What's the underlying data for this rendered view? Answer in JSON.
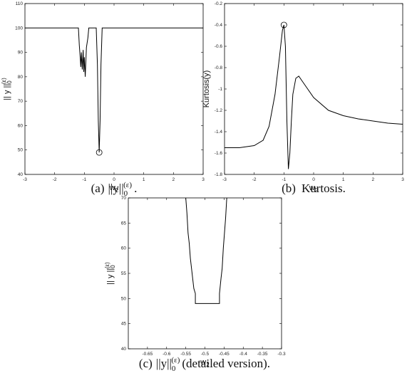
{
  "chart_data": [
    {
      "type": "line",
      "xlabel": {
        "base": "w",
        "sub": "2"
      },
      "ylabel": {
        "base": "|| y ||",
        "sub": "0",
        "sup": "(ε)"
      },
      "caption": {
        "label": "(a)",
        "math": {
          "base": "||y||",
          "sub": "0",
          "sup": "(ε)"
        },
        "suffix": "."
      },
      "xlim": [
        -3,
        3
      ],
      "xticks": [
        -3,
        -2,
        -1,
        0,
        1,
        2,
        3
      ],
      "ylim": [
        40,
        110
      ],
      "yticks": [
        40,
        50,
        60,
        70,
        80,
        90,
        100,
        110
      ],
      "x": [
        -3,
        -1.2,
        -1.17,
        -1.14,
        -1.12,
        -1.1,
        -1.07,
        -1.04,
        -1.02,
        -1.0,
        -0.97,
        -0.93,
        -0.88,
        -0.85,
        -0.6,
        -0.56,
        -0.53,
        -0.5,
        -0.47,
        -0.44,
        -0.4,
        3
      ],
      "series": [
        {
          "color": "#000000",
          "values": [
            100,
            100,
            93,
            88,
            84,
            90,
            83,
            91,
            82,
            88,
            80,
            92,
            96,
            100,
            100,
            85,
            62,
            49,
            62,
            85,
            100,
            100
          ]
        }
      ],
      "highlight": {
        "x": -0.5,
        "y": 49
      }
    },
    {
      "type": "line",
      "xlabel": {
        "base": "w",
        "sub": "2"
      },
      "ylabel": {
        "base": "Kurtosis(y)"
      },
      "caption": {
        "label": "(b)",
        "suffix": "Kurtosis."
      },
      "xlim": [
        -3,
        3
      ],
      "xticks": [
        -3,
        -2,
        -1,
        0,
        1,
        2,
        3
      ],
      "ylim": [
        -1.8,
        -0.2
      ],
      "yticks": [
        -1.8,
        -1.6,
        -1.4,
        -1.2,
        -1,
        -0.8,
        -0.6,
        -0.4,
        -0.2
      ],
      "x": [
        -3,
        -2.5,
        -2,
        -1.7,
        -1.5,
        -1.3,
        -1.15,
        -1.05,
        -1,
        -0.95,
        -0.9,
        -0.85,
        -0.8,
        -0.75,
        -0.7,
        -0.6,
        -0.5,
        -0.4,
        -0.2,
        0,
        0.5,
        1,
        1.5,
        2,
        2.5,
        3
      ],
      "series": [
        {
          "color": "#000000",
          "values": [
            -1.55,
            -1.55,
            -1.53,
            -1.48,
            -1.35,
            -1.05,
            -0.7,
            -0.45,
            -0.4,
            -0.6,
            -1.3,
            -1.75,
            -1.6,
            -1.3,
            -1.05,
            -0.9,
            -0.88,
            -0.92,
            -1.0,
            -1.08,
            -1.2,
            -1.25,
            -1.28,
            -1.3,
            -1.32,
            -1.33
          ]
        }
      ],
      "highlight": {
        "x": -1,
        "y": -0.4
      }
    },
    {
      "type": "line",
      "xlabel": {
        "base": "w",
        "sub": "2"
      },
      "ylabel": {
        "base": "|| y ||",
        "sub": "0",
        "sup": "(ε)"
      },
      "caption": {
        "label": "(c)",
        "math": {
          "base": "||y||",
          "sub": "0",
          "sup": "(ε)"
        },
        "suffix": "(detailed version)."
      },
      "xlim": [
        -0.7,
        -0.3
      ],
      "xticks": [
        -0.65,
        -0.6,
        -0.55,
        -0.5,
        -0.45,
        -0.4,
        -0.35,
        -0.3
      ],
      "ylim": [
        40,
        70
      ],
      "yticks": [
        40,
        45,
        50,
        55,
        60,
        65,
        70
      ],
      "x": [
        -0.55,
        -0.547,
        -0.544,
        -0.541,
        -0.538,
        -0.535,
        -0.532,
        -0.529,
        -0.525,
        -0.525,
        -0.462,
        -0.462,
        -0.458,
        -0.455,
        -0.452,
        -0.449,
        -0.446,
        -0.443
      ],
      "series": [
        {
          "color": "#000000",
          "values": [
            70,
            67,
            63,
            61,
            58,
            56,
            54,
            52,
            51,
            49,
            49,
            51,
            54,
            56,
            60,
            63,
            66,
            70
          ]
        }
      ]
    }
  ]
}
